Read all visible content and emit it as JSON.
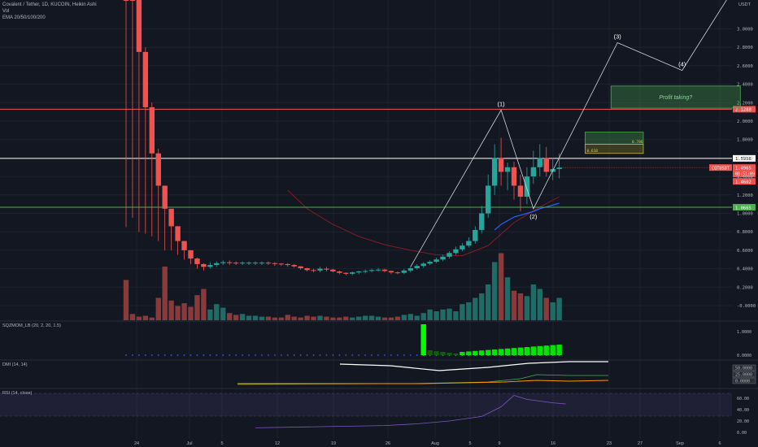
{
  "header": {
    "symbol_line": "Covalent / Tether, 1D, KUCOIN, Heikin Ashi",
    "volume_label": "Vol",
    "ema_label": "EMA 20/50/100/200"
  },
  "currency": "USDT",
  "colors": {
    "bg": "#131722",
    "up": "#26a69a",
    "down": "#ef5350",
    "grid": "#1e222d",
    "text": "#b2b5be"
  },
  "chart_data": {
    "type": "candlestick",
    "x_ticks": [
      "24",
      "Jul",
      "5",
      "12",
      "19",
      "26",
      "Aug",
      "5",
      "9",
      "16",
      "23",
      "27",
      "Sep",
      "6"
    ],
    "price_ticks": [
      "3.0000",
      "2.8000",
      "2.6000",
      "2.4000",
      "2.2000",
      "2.0000",
      "1.8000",
      "1.6000",
      "1.4000",
      "1.2000",
      "1.0000",
      "0.8000",
      "0.6000",
      "0.4000",
      "0.2000",
      "-0.0000"
    ],
    "candles": [
      {
        "o": 6.0,
        "h": 6.3,
        "l": 0.85,
        "c": 4.4
      },
      {
        "o": 4.4,
        "h": 4.7,
        "l": 0.95,
        "c": 3.4
      },
      {
        "o": 3.4,
        "h": 3.5,
        "l": 0.8,
        "c": 2.75
      },
      {
        "o": 2.75,
        "h": 2.8,
        "l": 0.78,
        "c": 2.15
      },
      {
        "o": 2.15,
        "h": 2.2,
        "l": 0.75,
        "c": 1.65
      },
      {
        "o": 1.65,
        "h": 1.7,
        "l": 0.7,
        "c": 1.3
      },
      {
        "o": 1.3,
        "h": 1.3,
        "l": 0.6,
        "c": 1.05
      },
      {
        "o": 1.05,
        "h": 1.05,
        "l": 0.6,
        "c": 0.86
      },
      {
        "o": 0.86,
        "h": 0.86,
        "l": 0.55,
        "c": 0.7
      },
      {
        "o": 0.7,
        "h": 0.7,
        "l": 0.5,
        "c": 0.6
      },
      {
        "o": 0.6,
        "h": 0.6,
        "l": 0.45,
        "c": 0.51
      },
      {
        "o": 0.51,
        "h": 0.52,
        "l": 0.4,
        "c": 0.45
      },
      {
        "o": 0.45,
        "h": 0.46,
        "l": 0.38,
        "c": 0.42
      },
      {
        "o": 0.42,
        "h": 0.47,
        "l": 0.4,
        "c": 0.44
      },
      {
        "o": 0.44,
        "h": 0.48,
        "l": 0.42,
        "c": 0.46
      },
      {
        "o": 0.46,
        "h": 0.49,
        "l": 0.44,
        "c": 0.47
      },
      {
        "o": 0.47,
        "h": 0.49,
        "l": 0.44,
        "c": 0.465
      },
      {
        "o": 0.465,
        "h": 0.48,
        "l": 0.44,
        "c": 0.46
      },
      {
        "o": 0.46,
        "h": 0.48,
        "l": 0.44,
        "c": 0.465
      },
      {
        "o": 0.465,
        "h": 0.48,
        "l": 0.44,
        "c": 0.465
      },
      {
        "o": 0.465,
        "h": 0.48,
        "l": 0.44,
        "c": 0.465
      },
      {
        "o": 0.465,
        "h": 0.48,
        "l": 0.44,
        "c": 0.465
      },
      {
        "o": 0.465,
        "h": 0.48,
        "l": 0.44,
        "c": 0.46
      },
      {
        "o": 0.46,
        "h": 0.47,
        "l": 0.43,
        "c": 0.455
      },
      {
        "o": 0.455,
        "h": 0.46,
        "l": 0.43,
        "c": 0.45
      },
      {
        "o": 0.45,
        "h": 0.46,
        "l": 0.42,
        "c": 0.44
      },
      {
        "o": 0.44,
        "h": 0.45,
        "l": 0.41,
        "c": 0.425
      },
      {
        "o": 0.425,
        "h": 0.43,
        "l": 0.39,
        "c": 0.405
      },
      {
        "o": 0.405,
        "h": 0.41,
        "l": 0.37,
        "c": 0.385
      },
      {
        "o": 0.385,
        "h": 0.4,
        "l": 0.36,
        "c": 0.38
      },
      {
        "o": 0.38,
        "h": 0.42,
        "l": 0.36,
        "c": 0.4
      },
      {
        "o": 0.4,
        "h": 0.42,
        "l": 0.37,
        "c": 0.39
      },
      {
        "o": 0.39,
        "h": 0.4,
        "l": 0.36,
        "c": 0.37
      },
      {
        "o": 0.37,
        "h": 0.38,
        "l": 0.34,
        "c": 0.355
      },
      {
        "o": 0.355,
        "h": 0.36,
        "l": 0.33,
        "c": 0.345
      },
      {
        "o": 0.345,
        "h": 0.37,
        "l": 0.33,
        "c": 0.36
      },
      {
        "o": 0.36,
        "h": 0.38,
        "l": 0.34,
        "c": 0.37
      },
      {
        "o": 0.37,
        "h": 0.39,
        "l": 0.35,
        "c": 0.375
      },
      {
        "o": 0.375,
        "h": 0.4,
        "l": 0.36,
        "c": 0.385
      },
      {
        "o": 0.385,
        "h": 0.41,
        "l": 0.37,
        "c": 0.39
      },
      {
        "o": 0.39,
        "h": 0.4,
        "l": 0.36,
        "c": 0.375
      },
      {
        "o": 0.375,
        "h": 0.38,
        "l": 0.34,
        "c": 0.36
      },
      {
        "o": 0.36,
        "h": 0.37,
        "l": 0.34,
        "c": 0.355
      },
      {
        "o": 0.355,
        "h": 0.4,
        "l": 0.34,
        "c": 0.38
      },
      {
        "o": 0.38,
        "h": 0.42,
        "l": 0.36,
        "c": 0.405
      },
      {
        "o": 0.405,
        "h": 0.45,
        "l": 0.39,
        "c": 0.43
      },
      {
        "o": 0.43,
        "h": 0.47,
        "l": 0.41,
        "c": 0.455
      },
      {
        "o": 0.455,
        "h": 0.49,
        "l": 0.44,
        "c": 0.475
      },
      {
        "o": 0.475,
        "h": 0.52,
        "l": 0.46,
        "c": 0.5
      },
      {
        "o": 0.5,
        "h": 0.55,
        "l": 0.48,
        "c": 0.53
      },
      {
        "o": 0.53,
        "h": 0.59,
        "l": 0.51,
        "c": 0.57
      },
      {
        "o": 0.57,
        "h": 0.64,
        "l": 0.55,
        "c": 0.61
      },
      {
        "o": 0.61,
        "h": 0.68,
        "l": 0.59,
        "c": 0.65
      },
      {
        "o": 0.65,
        "h": 0.74,
        "l": 0.63,
        "c": 0.7
      },
      {
        "o": 0.7,
        "h": 0.86,
        "l": 0.67,
        "c": 0.82
      },
      {
        "o": 0.82,
        "h": 1.08,
        "l": 0.78,
        "c": 1.0
      },
      {
        "o": 1.0,
        "h": 1.42,
        "l": 0.95,
        "c": 1.3
      },
      {
        "o": 1.3,
        "h": 1.75,
        "l": 1.2,
        "c": 1.6
      },
      {
        "o": 1.6,
        "h": 1.82,
        "l": 1.3,
        "c": 1.45
      },
      {
        "o": 1.45,
        "h": 1.55,
        "l": 1.25,
        "c": 1.5
      },
      {
        "o": 1.5,
        "h": 1.56,
        "l": 1.15,
        "c": 1.3
      },
      {
        "o": 1.3,
        "h": 1.42,
        "l": 1.02,
        "c": 1.18
      },
      {
        "o": 1.18,
        "h": 1.5,
        "l": 1.1,
        "c": 1.4
      },
      {
        "o": 1.4,
        "h": 1.68,
        "l": 1.32,
        "c": 1.5
      },
      {
        "o": 1.5,
        "h": 1.75,
        "l": 1.4,
        "c": 1.6
      },
      {
        "o": 1.6,
        "h": 1.72,
        "l": 1.4,
        "c": 1.45
      },
      {
        "o": 1.45,
        "h": 1.6,
        "l": 1.36,
        "c": 1.48
      },
      {
        "o": 1.48,
        "h": 1.65,
        "l": 1.38,
        "c": 1.4965
      }
    ],
    "volume": [
      0.45,
      0.07,
      0.04,
      0.05,
      0.03,
      0.25,
      0.6,
      0.22,
      0.16,
      0.19,
      0.15,
      0.28,
      0.35,
      0.12,
      0.18,
      0.14,
      0.08,
      0.06,
      0.07,
      0.05,
      0.05,
      0.04,
      0.04,
      0.03,
      0.03,
      0.06,
      0.04,
      0.03,
      0.05,
      0.04,
      0.05,
      0.04,
      0.03,
      0.03,
      0.04,
      0.03,
      0.04,
      0.05,
      0.05,
      0.04,
      0.03,
      0.03,
      0.04,
      0.06,
      0.07,
      0.05,
      0.08,
      0.12,
      0.1,
      0.12,
      0.13,
      0.1,
      0.18,
      0.2,
      0.25,
      0.3,
      0.4,
      0.65,
      0.75,
      0.48,
      0.33,
      0.3,
      0.27,
      0.4,
      0.35,
      0.25,
      0.2,
      0.25
    ],
    "ema_fast": [
      [
        57,
        0.82
      ],
      [
        58,
        0.88
      ],
      [
        59,
        0.92
      ],
      [
        60,
        0.96
      ],
      [
        61,
        0.98
      ],
      [
        62,
        1.0
      ],
      [
        63,
        1.02
      ],
      [
        64,
        1.05
      ],
      [
        65,
        1.07
      ],
      [
        66,
        1.09
      ],
      [
        67,
        1.11
      ]
    ],
    "ema_slow": [
      [
        25,
        1.25
      ],
      [
        28,
        1.05
      ],
      [
        32,
        0.88
      ],
      [
        36,
        0.75
      ],
      [
        40,
        0.66
      ],
      [
        44,
        0.6
      ],
      [
        48,
        0.55
      ],
      [
        52,
        0.54
      ],
      [
        56,
        0.65
      ],
      [
        60,
        0.9
      ],
      [
        64,
        1.07
      ],
      [
        67,
        1.18
      ]
    ],
    "horizontal_levels": [
      {
        "price": 2.1288,
        "label": "2.1288",
        "color": "#ef5350"
      },
      {
        "price": 1.5958,
        "label": "1.5958",
        "color": "#ffffff"
      },
      {
        "price": 1.0665,
        "label": "1.0665",
        "color": "#4caf50"
      }
    ],
    "current_price": {
      "symbol": "CQTUSDT",
      "price": "1.4965",
      "countdown": "08:51:09",
      "low": "1.4602"
    },
    "wave_labels": [
      {
        "label": "(1)",
        "i": 58,
        "p": 2.12
      },
      {
        "label": "(2)",
        "i": 63,
        "p": 1.05
      },
      {
        "label": "(3)",
        "i": 76,
        "p": 2.85
      },
      {
        "label": "(4)",
        "i": 86,
        "p": 2.55
      }
    ],
    "wave_path": [
      [
        44,
        0.42
      ],
      [
        58,
        2.12
      ],
      [
        63,
        1.05
      ],
      [
        76,
        2.85
      ],
      [
        86,
        2.55
      ],
      [
        95,
        3.55
      ]
    ],
    "targets": [
      {
        "label": "Profit taking?",
        "i0": 75,
        "i1": 95,
        "top": 2.38,
        "bottom": 2.14
      },
      {
        "i0": 71,
        "i1": 80,
        "top": 1.88,
        "bottom": 1.75
      },
      {
        "i0": 71,
        "i1": 80,
        "top": 1.75,
        "bottom": 1.65
      }
    ],
    "fib_labels": [
      "0.618",
      "0.786"
    ],
    "indicators": {
      "sqz": {
        "label": "SQZMOM_LB (20, 2, 20, 1.5)",
        "ticks": [
          "1.0000",
          "0.0000"
        ]
      },
      "dmi": {
        "label": "DMI (14, 14)",
        "ticks": [
          "50.0000",
          "25.0000",
          "0.0000"
        ]
      },
      "rsi": {
        "label": "RSI (14, close)",
        "ticks": [
          "60.00",
          "40.00",
          "20.00",
          "0.00"
        ],
        "values": [
          [
            20,
            8
          ],
          [
            30,
            10
          ],
          [
            40,
            12
          ],
          [
            45,
            15
          ],
          [
            50,
            20
          ],
          [
            55,
            28
          ],
          [
            58,
            45
          ],
          [
            60,
            65
          ],
          [
            62,
            58
          ],
          [
            64,
            55
          ],
          [
            66,
            52
          ],
          [
            68,
            50
          ]
        ]
      }
    }
  }
}
